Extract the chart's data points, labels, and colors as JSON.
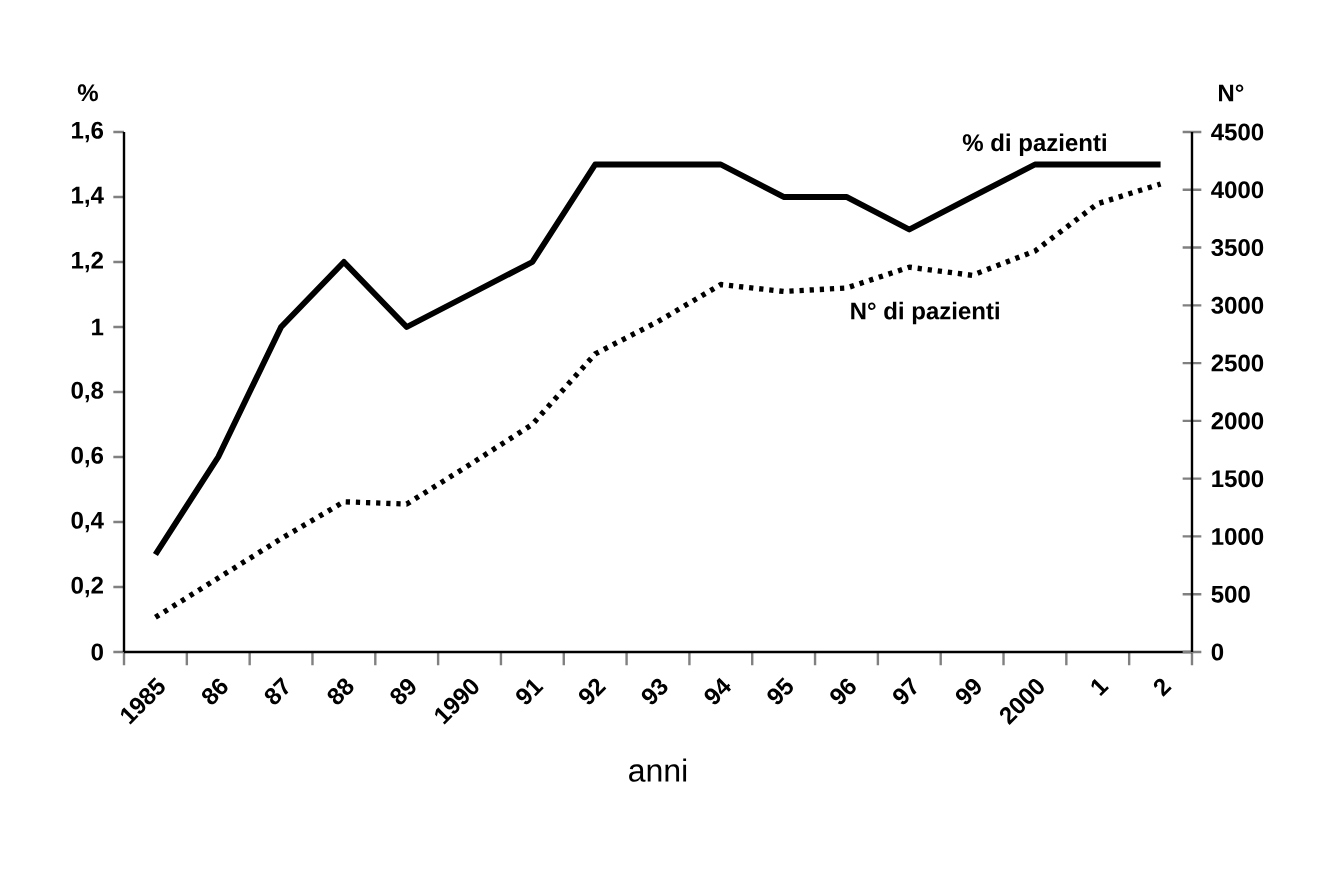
{
  "chart_data": {
    "type": "line",
    "xlabel": "anni",
    "ylabel": "%",
    "y2label": "N°",
    "categories": [
      "1985",
      "86",
      "87",
      "88",
      "89",
      "1990",
      "91",
      "92",
      "93",
      "94",
      "95",
      "96",
      "97",
      "99",
      "2000",
      "1",
      "2"
    ],
    "series": [
      {
        "name": "% di pazienti",
        "color": "#000000",
        "line_style": "solid",
        "values": [
          0.3,
          0.6,
          1.0,
          1.2,
          1.0,
          1.1,
          1.2,
          1.5,
          1.5,
          1.5,
          1.4,
          1.4,
          1.3,
          1.4,
          1.5,
          1.5,
          1.5
        ]
      },
      {
        "name": "N° di pazienti",
        "color": "#000000",
        "line_style": "dotted",
        "axis": "y2",
        "values": [
          300,
          640,
          980,
          1300,
          1280,
          1620,
          1970,
          2580,
          2860,
          3180,
          3120,
          3150,
          3330,
          3260,
          3470,
          3880,
          4050
        ]
      }
    ],
    "ylim": [
      0,
      1.6
    ],
    "yticks": [
      0,
      {
        "value": 0.2,
        "label": "0,2"
      },
      {
        "value": 0.4,
        "label": "0,4"
      },
      {
        "value": 0.6,
        "label": "0,6"
      },
      {
        "value": 0.8,
        "label": "0,8"
      },
      1,
      {
        "value": 1.2,
        "label": "1,2"
      },
      {
        "value": 1.4,
        "label": "1,4"
      },
      {
        "value": 1.6,
        "label": "1,6"
      }
    ],
    "y2lim": [
      0,
      4500
    ],
    "y2ticks": [
      0,
      500,
      1000,
      1500,
      2000,
      2500,
      3000,
      3500,
      4000,
      4500
    ],
    "grid": false,
    "marker": "none"
  }
}
